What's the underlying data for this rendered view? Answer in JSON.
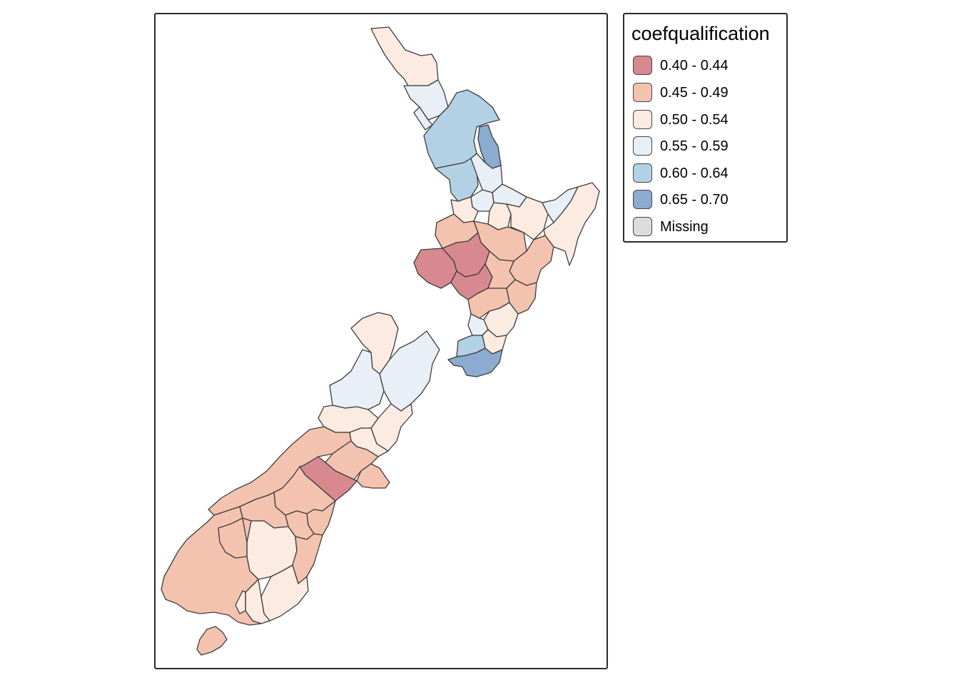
{
  "legend": {
    "title": "coefqualification",
    "items": [
      {
        "label": "0.40 - 0.44",
        "color": "#d7898f"
      },
      {
        "label": "0.45 - 0.49",
        "color": "#f4c3af"
      },
      {
        "label": "0.50 - 0.54",
        "color": "#fcebe1"
      },
      {
        "label": "0.55 - 0.59",
        "color": "#e9eff7"
      },
      {
        "label": "0.60 - 0.64",
        "color": "#b3d1e5"
      },
      {
        "label": "0.65 - 0.70",
        "color": "#8bacd0"
      },
      {
        "label": "Missing",
        "color": "#dcdcdc"
      }
    ]
  },
  "border_color": "#3c3c3c"
}
